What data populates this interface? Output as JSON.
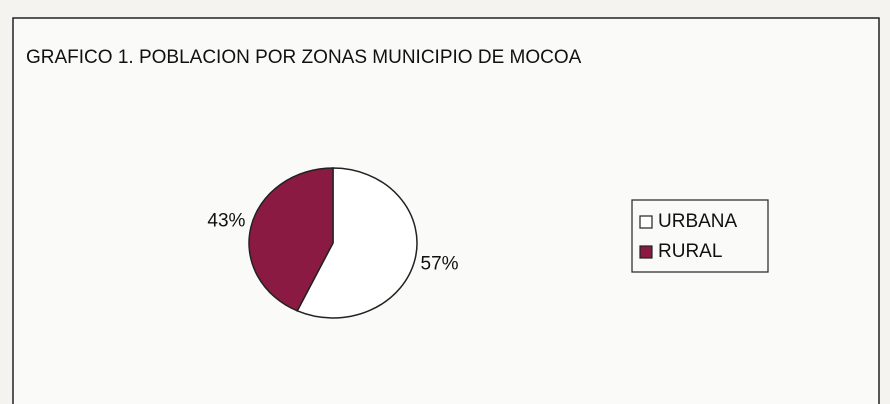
{
  "chart_data": {
    "type": "pie",
    "title": "GRAFICO 1. POBLACION POR ZONAS MUNICIPIO DE MOCOA",
    "categories": [
      "URBANA",
      "RURAL"
    ],
    "values": [
      57,
      43
    ],
    "value_labels": [
      "57%",
      "43%"
    ],
    "colors": [
      "#ffffff",
      "#8b1a42"
    ],
    "legend": "right"
  }
}
